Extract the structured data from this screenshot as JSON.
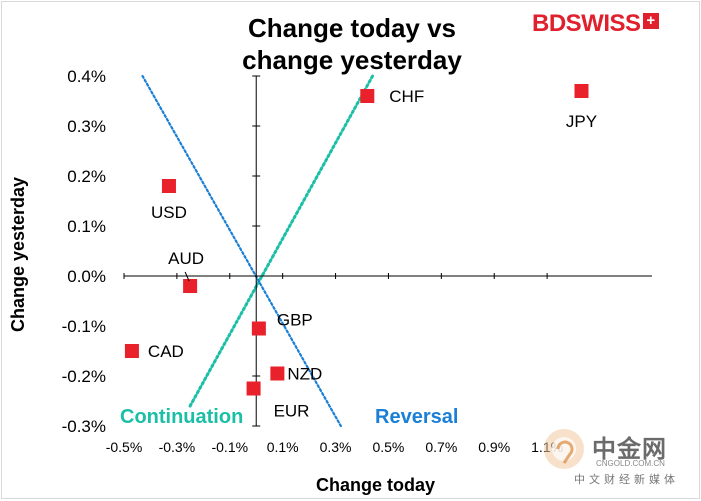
{
  "brand": {
    "logo_text_bold": "BD",
    "logo_text": "SWISS",
    "plus": "+"
  },
  "watermark": {
    "cn_text": "中金网",
    "url": "CNGOLD.COM.CN",
    "sub": "中文财经新媒体"
  },
  "colors": {
    "marker": "#e8212b",
    "continuation_line": "#1bbfa6",
    "reversal_line": "#1a7fd6",
    "axis": "#000000"
  },
  "chart_data": {
    "type": "scatter",
    "title": "Change today vs change yesterday",
    "title_lines": [
      "Change today vs",
      "change yesterday"
    ],
    "xlabel": "Change today",
    "ylabel": "Change yesterday",
    "xlim": [
      -0.5,
      1.3
    ],
    "ylim": [
      -0.3,
      0.4
    ],
    "x_ticks": [
      "-0.5%",
      "-0.3%",
      "-0.1%",
      "0.1%",
      "0.3%",
      "0.5%",
      "0.7%",
      "0.9%",
      "1.1%"
    ],
    "x_tick_values": [
      -0.5,
      -0.3,
      -0.1,
      0.1,
      0.3,
      0.5,
      0.7,
      0.9,
      1.1
    ],
    "y_ticks": [
      "-0.3%",
      "-0.2%",
      "-0.1%",
      "0.0%",
      "0.1%",
      "0.2%",
      "0.3%",
      "0.4%"
    ],
    "y_tick_values": [
      -0.3,
      -0.2,
      -0.1,
      0.0,
      0.1,
      0.2,
      0.3,
      0.4
    ],
    "points": [
      {
        "label": "CHF",
        "x": 0.42,
        "y": 0.36
      },
      {
        "label": "JPY",
        "x": 1.23,
        "y": 0.37
      },
      {
        "label": "USD",
        "x": -0.33,
        "y": 0.18
      },
      {
        "label": "AUD",
        "x": -0.25,
        "y": -0.02
      },
      {
        "label": "GBP",
        "x": 0.01,
        "y": -0.105
      },
      {
        "label": "CAD",
        "x": -0.47,
        "y": -0.15
      },
      {
        "label": "NZD",
        "x": 0.08,
        "y": -0.195
      },
      {
        "label": "EUR",
        "x": -0.01,
        "y": -0.225
      }
    ],
    "reference_lines": [
      {
        "name": "Continuation",
        "from": [
          -0.25,
          -0.26
        ],
        "to": [
          0.44,
          0.4
        ]
      },
      {
        "name": "Reversal",
        "from": [
          -0.43,
          0.4
        ],
        "to": [
          0.32,
          -0.3
        ]
      }
    ]
  }
}
